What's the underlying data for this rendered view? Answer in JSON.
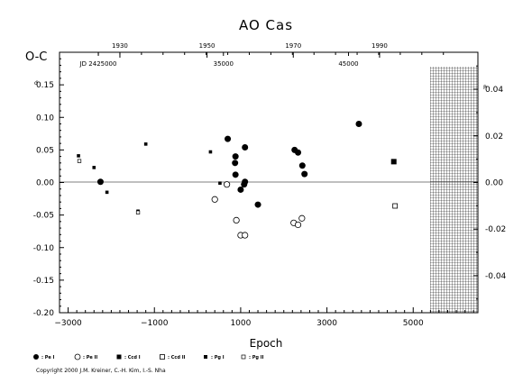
{
  "chart_data": {
    "type": "scatter",
    "title": "AO Cas",
    "xlabel": "Epoch",
    "ylabel": "O-C",
    "ylabel_unit": "d",
    "right_axis_unit": "P",
    "xlim": [
      -3200,
      6500
    ],
    "ylim": [
      -0.2,
      0.2
    ],
    "right_ylim": [
      -0.05588,
      0.05588
    ],
    "x_ticks": [
      -3000,
      -1000,
      1000,
      3000,
      5000
    ],
    "y_ticks": [
      -0.2,
      -0.15,
      -0.1,
      -0.05,
      0.0,
      0.05,
      0.1,
      0.15
    ],
    "y_tick_labels": [
      "-0.20",
      "-0.15",
      "-0.10",
      "-0.05",
      "0.00",
      "0.05",
      "0.10",
      "0.15"
    ],
    "right_ticks": [
      -0.04,
      -0.02,
      0.0,
      0.02,
      0.04
    ],
    "right_tick_labels": [
      "-0.04",
      "-0.02",
      "0.00",
      "0.02",
      "0.04"
    ],
    "top_year_ticks": [
      {
        "label": "1930",
        "epoch": -1800
      },
      {
        "label": "1950",
        "epoch": 220
      },
      {
        "label": "1970",
        "epoch": 2220
      },
      {
        "label": "1990",
        "epoch": 4220
      }
    ],
    "top_jd_labels": [
      {
        "label": "JD 2425000",
        "epoch": -2300
      },
      {
        "label": "35000",
        "epoch": 600
      },
      {
        "label": "45000",
        "epoch": 3500
      }
    ],
    "zero_line": true,
    "hatched_region_from_epoch": 5450,
    "series": [
      {
        "name": ": Pe I",
        "symbol": "filled-circle",
        "points": [
          [
            -2250,
            0.001
          ],
          [
            700,
            0.067
          ],
          [
            880,
            0.04
          ],
          [
            870,
            0.03
          ],
          [
            880,
            0.012
          ],
          [
            1000,
            -0.011
          ],
          [
            1100,
            0.054
          ],
          [
            1080,
            -0.003
          ],
          [
            1400,
            -0.034
          ],
          [
            2250,
            0.05
          ],
          [
            2330,
            0.046
          ],
          [
            2430,
            0.026
          ],
          [
            2480,
            0.013
          ],
          [
            3740,
            0.09
          ],
          [
            1100,
            0.001
          ]
        ]
      },
      {
        "name": ": Pe II",
        "symbol": "open-circle",
        "points": [
          [
            400,
            -0.026
          ],
          [
            680,
            -0.003
          ],
          [
            900,
            -0.058
          ],
          [
            1000,
            -0.081
          ],
          [
            1100,
            -0.081
          ],
          [
            2230,
            -0.062
          ],
          [
            2330,
            -0.065
          ],
          [
            2420,
            -0.055
          ]
        ]
      },
      {
        "name": ": Ccd I",
        "symbol": "filled-square",
        "points": [
          [
            4550,
            0.032
          ]
        ]
      },
      {
        "name": ": Ccd II",
        "symbol": "open-square",
        "points": [
          [
            4580,
            -0.036
          ]
        ]
      },
      {
        "name": ": Pg I",
        "symbol": "small-filled-square",
        "points": [
          [
            -2760,
            0.041
          ],
          [
            -2400,
            0.023
          ],
          [
            -2100,
            -0.015
          ],
          [
            -1200,
            0.059
          ],
          [
            -1380,
            -0.044
          ],
          [
            300,
            0.047
          ],
          [
            520,
            -0.001
          ]
        ]
      },
      {
        "name": ": Pg II",
        "symbol": "small-open-square",
        "points": [
          [
            -2740,
            0.033
          ],
          [
            -1380,
            -0.046
          ]
        ]
      }
    ]
  },
  "copyright": "Copyright 2000 J.M. Kreiner, C.-H. Kim, I.-S. Nha"
}
